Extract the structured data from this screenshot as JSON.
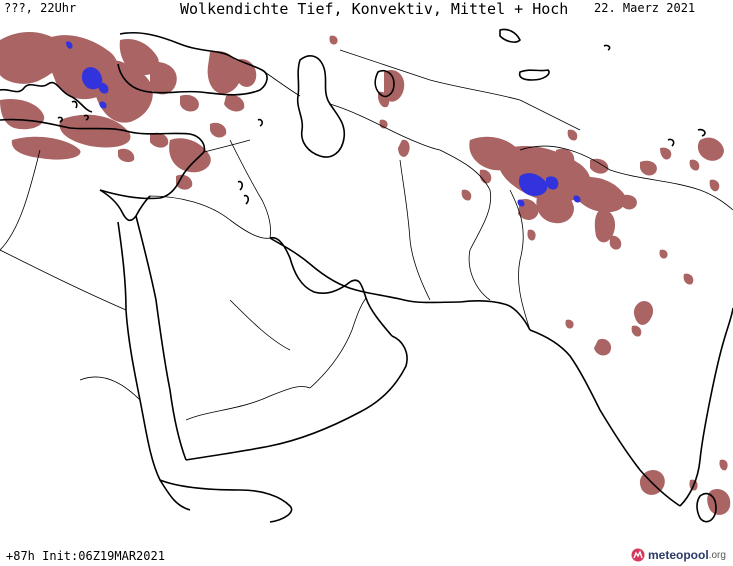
{
  "header": {
    "left": "???, 22Uhr",
    "title": "Wolkendichte  Tief, Konvektiv, Mittel + Hoch",
    "date": "22. Maerz 2021"
  },
  "footer": {
    "run_info": "+87h Init:06Z19MAR2021"
  },
  "logo": {
    "name": "meteopool",
    "tld": ".org"
  },
  "colors": {
    "cloud": "#9c4a4a",
    "cloud_dense": "#7a2d33",
    "convective": "#3333dd",
    "coast": "#000000",
    "border": "#000000"
  }
}
